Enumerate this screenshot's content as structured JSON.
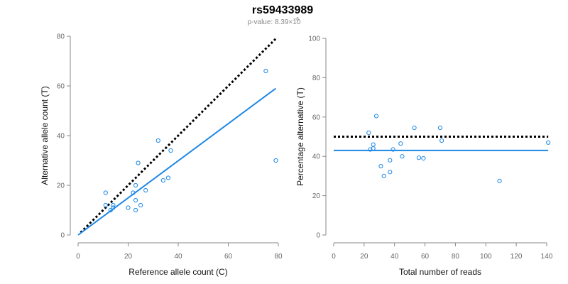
{
  "title": "rs59433989",
  "subtitle": {
    "prefix": "p-value: 8.39×10",
    "exponent": "−6"
  },
  "colors": {
    "points": "#1e88e5",
    "fit_line": "#1e88e5",
    "reference_line": "#000000",
    "axis": "#888888",
    "tick_label": "#666666"
  },
  "chart_data": [
    {
      "type": "scatter",
      "xlabel": "Reference allele count (C)",
      "ylabel": "Alternative allele count (T)",
      "xlim": [
        0,
        80
      ],
      "ylim": [
        0,
        80
      ],
      "xticks": [
        0,
        20,
        40,
        60,
        80
      ],
      "yticks": [
        0,
        20,
        40,
        60,
        80
      ],
      "grid": false,
      "points": [
        {
          "x": 11,
          "y": 17
        },
        {
          "x": 11,
          "y": 12
        },
        {
          "x": 13,
          "y": 10
        },
        {
          "x": 14,
          "y": 12
        },
        {
          "x": 14,
          "y": 11
        },
        {
          "x": 20,
          "y": 11
        },
        {
          "x": 22,
          "y": 17
        },
        {
          "x": 23,
          "y": 20
        },
        {
          "x": 23,
          "y": 14
        },
        {
          "x": 23,
          "y": 10
        },
        {
          "x": 24,
          "y": 29
        },
        {
          "x": 25,
          "y": 12
        },
        {
          "x": 27,
          "y": 18
        },
        {
          "x": 32,
          "y": 38
        },
        {
          "x": 34,
          "y": 22
        },
        {
          "x": 36,
          "y": 23
        },
        {
          "x": 37,
          "y": 34
        },
        {
          "x": 75,
          "y": 66
        },
        {
          "x": 79,
          "y": 30
        }
      ],
      "reference_line": {
        "x": [
          1,
          79
        ],
        "y": [
          1,
          79
        ],
        "style": "dotted"
      },
      "fit_line": {
        "x": [
          0,
          79
        ],
        "y": [
          0,
          59
        ],
        "style": "solid"
      }
    },
    {
      "type": "scatter",
      "xlabel": "Total number of reads",
      "ylabel": "Percentage alternative (T)",
      "xlim": [
        0,
        140
      ],
      "ylim": [
        0,
        100
      ],
      "xticks": [
        0,
        20,
        40,
        60,
        80,
        100,
        120,
        140
      ],
      "yticks": [
        0,
        20,
        40,
        60,
        80,
        100
      ],
      "grid": false,
      "points": [
        {
          "x": 23,
          "y": 52
        },
        {
          "x": 24,
          "y": 43.5
        },
        {
          "x": 26,
          "y": 44
        },
        {
          "x": 26,
          "y": 46
        },
        {
          "x": 28,
          "y": 60.5
        },
        {
          "x": 31,
          "y": 35
        },
        {
          "x": 33,
          "y": 30
        },
        {
          "x": 37,
          "y": 32
        },
        {
          "x": 37,
          "y": 38
        },
        {
          "x": 39,
          "y": 43.5
        },
        {
          "x": 44,
          "y": 46.5
        },
        {
          "x": 45,
          "y": 40
        },
        {
          "x": 53,
          "y": 54.5
        },
        {
          "x": 56,
          "y": 39.3
        },
        {
          "x": 59,
          "y": 39
        },
        {
          "x": 70,
          "y": 54.5
        },
        {
          "x": 71,
          "y": 48
        },
        {
          "x": 109,
          "y": 27.5
        },
        {
          "x": 141,
          "y": 47
        }
      ],
      "reference_line": {
        "x": [
          0,
          141
        ],
        "y": [
          50,
          50
        ],
        "style": "dotted"
      },
      "fit_line": {
        "x": [
          0,
          141
        ],
        "y": [
          43,
          43
        ],
        "style": "solid"
      }
    }
  ]
}
